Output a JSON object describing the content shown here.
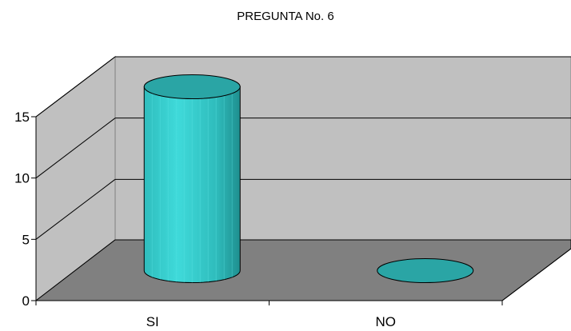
{
  "chart_data": {
    "type": "bar",
    "style": "3d-cylinder",
    "title": "PREGUNTA No. 6",
    "categories": [
      "SI",
      "NO"
    ],
    "values": [
      15,
      0
    ],
    "ylim": [
      0,
      15
    ],
    "yticks": [
      "0",
      "5",
      "10",
      "15"
    ],
    "xlabel": "",
    "ylabel": "",
    "grid": true,
    "legend": "none",
    "colors": {
      "bar": "#33CCCC",
      "bar_top": "#2AA5A5",
      "back_wall": "#C0C0C0",
      "side_wall": "#C0C0C0",
      "floor": "#808080"
    }
  }
}
